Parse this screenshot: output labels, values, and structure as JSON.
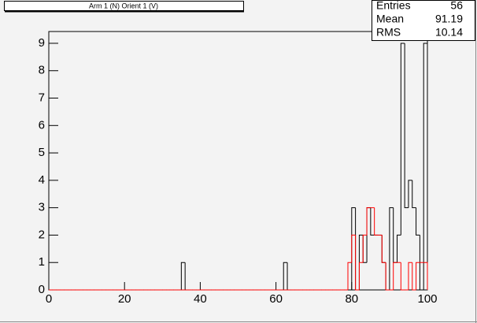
{
  "chart_data": {
    "type": "histogram",
    "title": "Arm 1 (N) Orient 1 (V)",
    "bins": [
      0,
      1,
      2,
      3,
      4,
      5,
      6,
      7,
      8,
      9,
      10,
      11,
      12,
      13,
      14,
      15,
      16,
      17,
      18,
      19,
      20,
      21,
      22,
      23,
      24,
      25,
      26,
      27,
      28,
      29,
      30,
      31,
      32,
      33,
      34,
      35,
      36,
      37,
      38,
      39,
      40,
      41,
      42,
      43,
      44,
      45,
      46,
      47,
      48,
      49,
      50,
      51,
      52,
      53,
      54,
      55,
      56,
      57,
      58,
      59,
      60,
      61,
      62,
      63,
      64,
      65,
      66,
      67,
      68,
      69,
      70,
      71,
      72,
      73,
      74,
      75,
      76,
      77,
      78,
      79,
      80,
      81,
      82,
      83,
      84,
      85,
      86,
      87,
      88,
      89,
      90,
      91,
      92,
      93,
      94,
      95,
      96,
      97,
      98,
      99,
      100
    ],
    "series": [
      {
        "color": "#000000",
        "values": [
          0,
          0,
          0,
          0,
          0,
          0,
          0,
          0,
          0,
          0,
          0,
          0,
          0,
          0,
          0,
          0,
          0,
          0,
          0,
          0,
          0,
          0,
          0,
          0,
          0,
          0,
          0,
          0,
          0,
          0,
          0,
          0,
          0,
          0,
          0,
          1,
          0,
          0,
          0,
          0,
          0,
          0,
          0,
          0,
          0,
          0,
          0,
          0,
          0,
          0,
          0,
          0,
          0,
          0,
          0,
          0,
          0,
          0,
          0,
          0,
          0,
          0,
          1,
          0,
          0,
          0,
          0,
          0,
          0,
          0,
          0,
          0,
          0,
          0,
          0,
          0,
          0,
          0,
          0,
          0,
          3,
          0,
          2,
          1,
          3,
          2,
          2,
          2,
          1,
          0,
          3,
          1,
          2,
          9,
          3,
          4,
          3,
          2,
          0,
          9
        ]
      },
      {
        "color": "#ff0000",
        "values": [
          0,
          0,
          0,
          0,
          0,
          0,
          0,
          0,
          0,
          0,
          0,
          0,
          0,
          0,
          0,
          0,
          0,
          0,
          0,
          0,
          0,
          0,
          0,
          0,
          0,
          0,
          0,
          0,
          0,
          0,
          0,
          0,
          0,
          0,
          0,
          0,
          0,
          0,
          0,
          0,
          0,
          0,
          0,
          0,
          0,
          0,
          0,
          0,
          0,
          0,
          0,
          0,
          0,
          0,
          0,
          0,
          0,
          0,
          0,
          0,
          0,
          0,
          0,
          0,
          0,
          0,
          0,
          0,
          0,
          0,
          0,
          0,
          0,
          0,
          0,
          0,
          0,
          0,
          0,
          1,
          2,
          0,
          1,
          2,
          3,
          3,
          2,
          2,
          1,
          0,
          0,
          1,
          1,
          0,
          0,
          1,
          0,
          1,
          1,
          1
        ]
      }
    ],
    "xlim": [
      0,
      100
    ],
    "ylim": [
      0,
      9.43
    ],
    "xticks": [
      0,
      20,
      40,
      60,
      80,
      100
    ],
    "yticks": [
      0,
      1,
      2,
      3,
      4,
      5,
      6,
      7,
      8,
      9
    ],
    "stats": [
      {
        "label": "Entries",
        "value": 56
      },
      {
        "label": "Mean",
        "value": 91.19
      },
      {
        "label": "RMS",
        "value": 10.14
      }
    ]
  }
}
